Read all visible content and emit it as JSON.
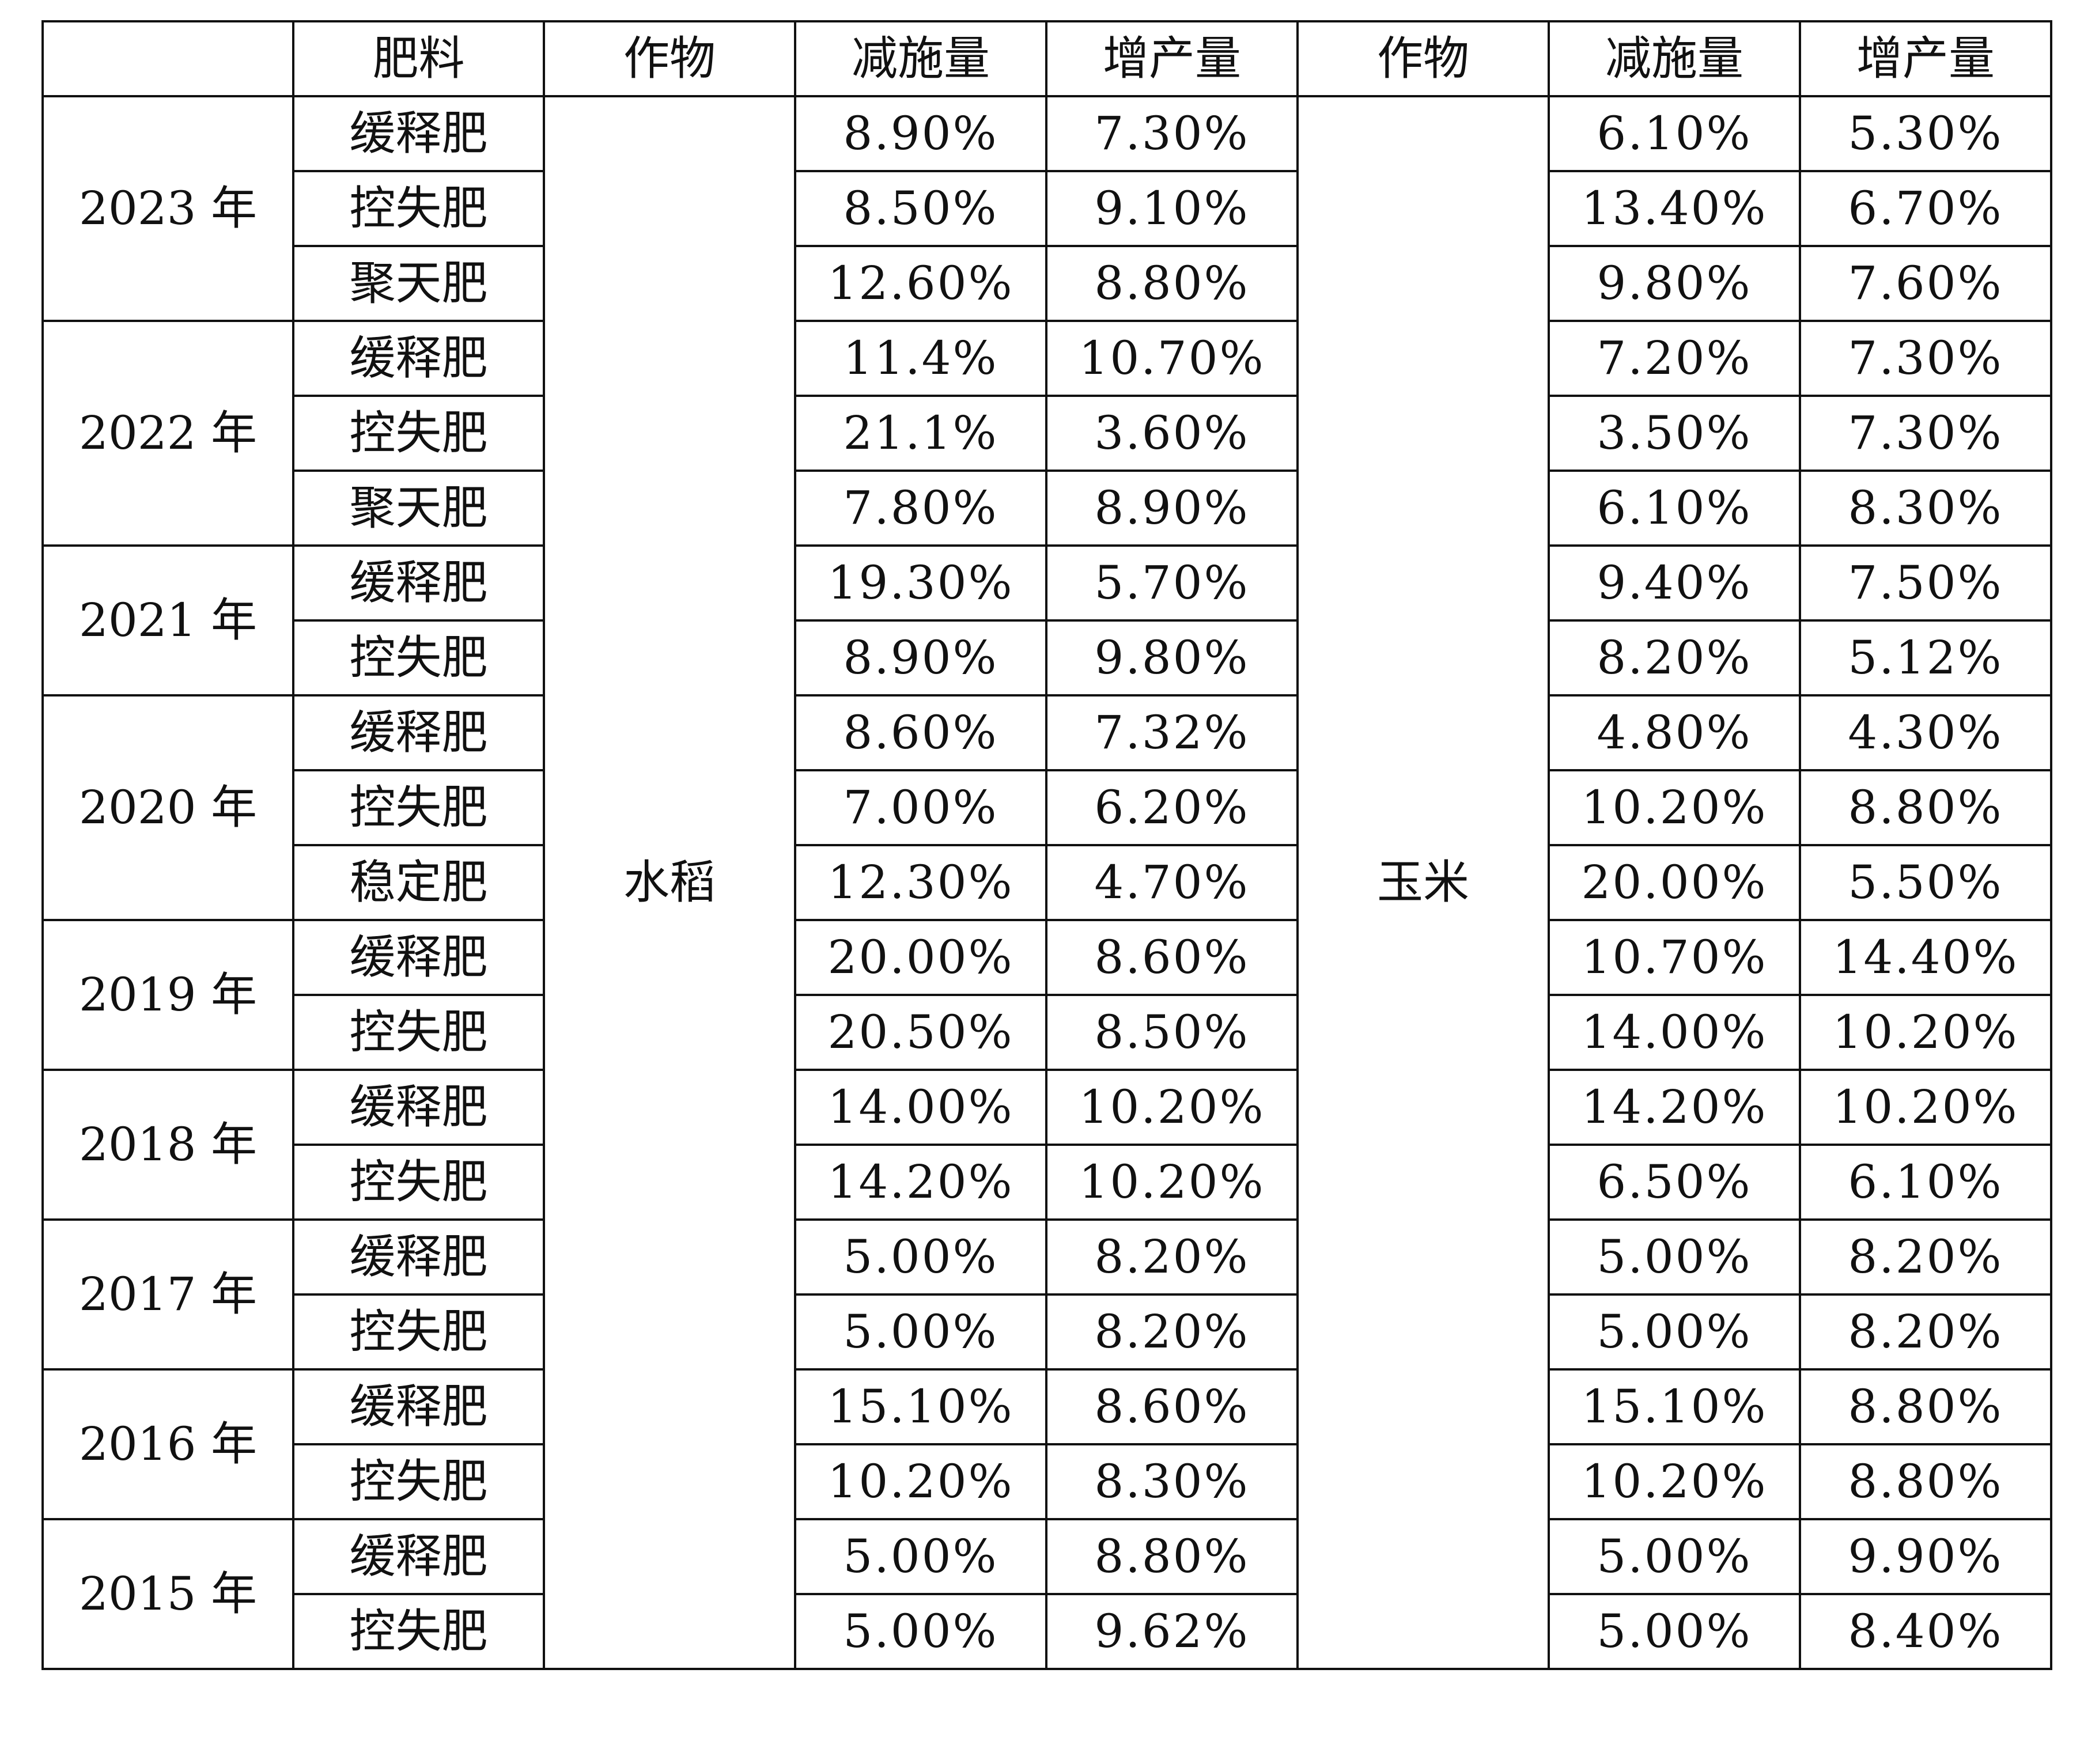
{
  "table": {
    "headers": [
      "",
      "肥料",
      "作物",
      "减施量",
      "增产量",
      "作物",
      "减施量",
      "增产量"
    ],
    "crop_a": "水稻",
    "crop_b": "玉米",
    "groups": [
      {
        "year": "2023 年",
        "rows": [
          {
            "fertilizer": "缓释肥",
            "a_reduction": "8.90%",
            "a_increase": "7.30%",
            "b_reduction": "6.10%",
            "b_increase": "5.30%"
          },
          {
            "fertilizer": "控失肥",
            "a_reduction": "8.50%",
            "a_increase": "9.10%",
            "b_reduction": "13.40%",
            "b_increase": "6.70%"
          },
          {
            "fertilizer": "聚天肥",
            "a_reduction": "12.60%",
            "a_increase": "8.80%",
            "b_reduction": "9.80%",
            "b_increase": "7.60%"
          }
        ]
      },
      {
        "year": "2022 年",
        "rows": [
          {
            "fertilizer": "缓释肥",
            "a_reduction": "11.4%",
            "a_increase": "10.70%",
            "b_reduction": "7.20%",
            "b_increase": "7.30%"
          },
          {
            "fertilizer": "控失肥",
            "a_reduction": "21.1%",
            "a_increase": "3.60%",
            "b_reduction": "3.50%",
            "b_increase": "7.30%"
          },
          {
            "fertilizer": "聚天肥",
            "a_reduction": "7.80%",
            "a_increase": "8.90%",
            "b_reduction": "6.10%",
            "b_increase": "8.30%"
          }
        ]
      },
      {
        "year": "2021 年",
        "rows": [
          {
            "fertilizer": "缓释肥",
            "a_reduction": "19.30%",
            "a_increase": "5.70%",
            "b_reduction": "9.40%",
            "b_increase": "7.50%"
          },
          {
            "fertilizer": "控失肥",
            "a_reduction": "8.90%",
            "a_increase": "9.80%",
            "b_reduction": "8.20%",
            "b_increase": "5.12%"
          }
        ]
      },
      {
        "year": "2020 年",
        "rows": [
          {
            "fertilizer": "缓释肥",
            "a_reduction": "8.60%",
            "a_increase": "7.32%",
            "b_reduction": "4.80%",
            "b_increase": "4.30%"
          },
          {
            "fertilizer": "控失肥",
            "a_reduction": "7.00%",
            "a_increase": "6.20%",
            "b_reduction": "10.20%",
            "b_increase": "8.80%"
          },
          {
            "fertilizer": "稳定肥",
            "a_reduction": "12.30%",
            "a_increase": "4.70%",
            "b_reduction": "20.00%",
            "b_increase": "5.50%"
          }
        ]
      },
      {
        "year": "2019 年",
        "rows": [
          {
            "fertilizer": "缓释肥",
            "a_reduction": "20.00%",
            "a_increase": "8.60%",
            "b_reduction": "10.70%",
            "b_increase": "14.40%"
          },
          {
            "fertilizer": "控失肥",
            "a_reduction": "20.50%",
            "a_increase": "8.50%",
            "b_reduction": "14.00%",
            "b_increase": "10.20%"
          }
        ]
      },
      {
        "year": "2018 年",
        "rows": [
          {
            "fertilizer": "缓释肥",
            "a_reduction": "14.00%",
            "a_increase": "10.20%",
            "b_reduction": "14.20%",
            "b_increase": "10.20%"
          },
          {
            "fertilizer": "控失肥",
            "a_reduction": "14.20%",
            "a_increase": "10.20%",
            "b_reduction": "6.50%",
            "b_increase": "6.10%"
          }
        ]
      },
      {
        "year": "2017 年",
        "rows": [
          {
            "fertilizer": "缓释肥",
            "a_reduction": "5.00%",
            "a_increase": "8.20%",
            "b_reduction": "5.00%",
            "b_increase": "8.20%"
          },
          {
            "fertilizer": "控失肥",
            "a_reduction": "5.00%",
            "a_increase": "8.20%",
            "b_reduction": "5.00%",
            "b_increase": "8.20%"
          }
        ]
      },
      {
        "year": "2016 年",
        "rows": [
          {
            "fertilizer": "缓释肥",
            "a_reduction": "15.10%",
            "a_increase": "8.60%",
            "b_reduction": "15.10%",
            "b_increase": "8.80%"
          },
          {
            "fertilizer": "控失肥",
            "a_reduction": "10.20%",
            "a_increase": "8.30%",
            "b_reduction": "10.20%",
            "b_increase": "8.80%"
          }
        ]
      },
      {
        "year": "2015 年",
        "rows": [
          {
            "fertilizer": "缓释肥",
            "a_reduction": "5.00%",
            "a_increase": "8.80%",
            "b_reduction": "5.00%",
            "b_increase": "9.90%"
          },
          {
            "fertilizer": "控失肥",
            "a_reduction": "5.00%",
            "a_increase": "9.62%",
            "b_reduction": "5.00%",
            "b_increase": "8.40%"
          }
        ]
      }
    ]
  }
}
